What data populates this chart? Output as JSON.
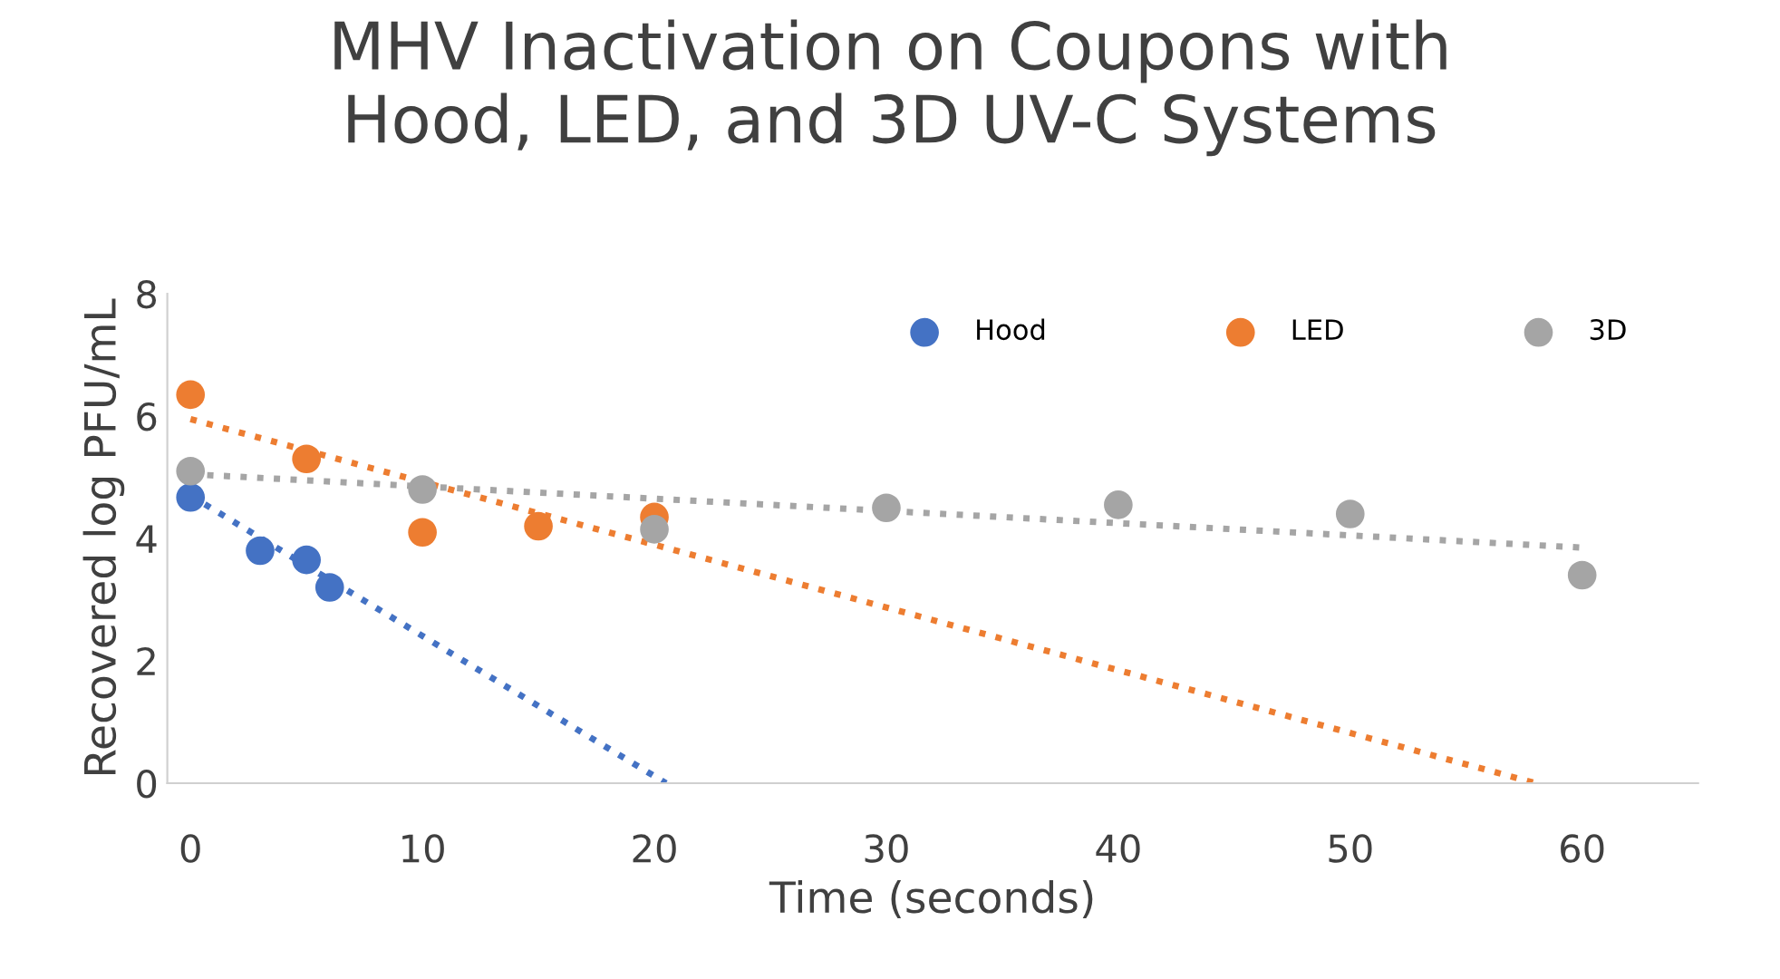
{
  "chart_data": {
    "type": "scatter",
    "title": "MHV Inactivation on Coupons with\nHood, LED, and 3D UV-C Systems",
    "xlabel": "Time (seconds)",
    "ylabel": "Recovered log PFU/mL",
    "xlim": [
      -1,
      65
    ],
    "xticks": [
      0,
      10,
      20,
      30,
      40,
      50,
      60
    ],
    "ylim": [
      0,
      8
    ],
    "yticks": [
      0,
      2,
      4,
      6,
      8
    ],
    "grid": false,
    "legend": "top right",
    "series": [
      {
        "name": "Hood",
        "marker": "circle",
        "color": "#4472c4",
        "x": [
          0,
          3,
          5,
          6
        ],
        "values": [
          4.67,
          3.8,
          3.65,
          3.2
        ]
      },
      {
        "name": "LED",
        "marker": "circle",
        "color": "#ed7d31",
        "x": [
          0,
          5,
          10,
          15,
          20
        ],
        "values": [
          6.35,
          5.3,
          4.1,
          4.2,
          4.35
        ]
      },
      {
        "name": "3D",
        "marker": "circle",
        "color": "#a5a5a5",
        "x": [
          0,
          10,
          20,
          30,
          40,
          50,
          60
        ],
        "values": [
          5.1,
          4.8,
          4.15,
          4.5,
          4.55,
          4.4,
          3.4
        ]
      },
      {
        "type": "line",
        "marker": "none",
        "line_style": "dotted",
        "color": "#4472c4",
        "x": [
          0,
          20.5
        ],
        "values": [
          4.7,
          0
        ]
      },
      {
        "type": "line",
        "marker": "none",
        "line_style": "dotted",
        "color": "#ed7d31",
        "x": [
          0,
          58
        ],
        "values": [
          5.95,
          0
        ]
      },
      {
        "type": "line",
        "marker": "none",
        "line_style": "dotted",
        "color": "#a5a5a5",
        "x": [
          0,
          60
        ],
        "values": [
          5.05,
          3.85
        ]
      }
    ]
  }
}
